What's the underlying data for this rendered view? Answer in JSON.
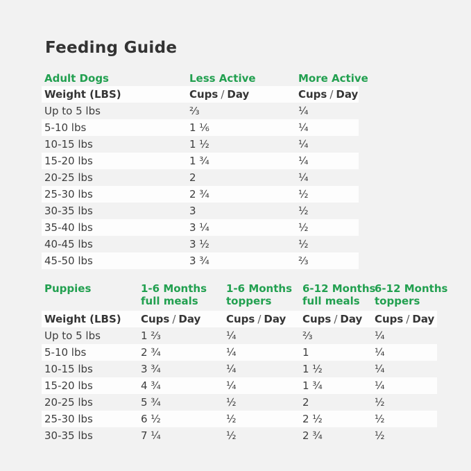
{
  "page": {
    "title": "Feeding Guide",
    "colors": {
      "accent_green": "#22A050",
      "background": "#F2F2F2",
      "stripe_white": "#FDFDFD",
      "text_dark": "#3A3A3A"
    }
  },
  "labels": {
    "cups_parts": [
      "Cups",
      "/",
      "Day"
    ]
  },
  "adult_table": {
    "section_label": "Adult Dogs",
    "col_headers": [
      "Less Active",
      "More Active"
    ],
    "weight_header": "Weight (LBS)",
    "rows": [
      {
        "weight": "Up to 5 lbs",
        "less": "⅔",
        "more": "¼"
      },
      {
        "weight": "5-10 lbs",
        "less": "1 ⅙",
        "more": "¼"
      },
      {
        "weight": "10-15 lbs",
        "less": "1 ½",
        "more": "¼"
      },
      {
        "weight": "15-20 lbs",
        "less": "1 ¾",
        "more": "¼"
      },
      {
        "weight": "20-25 lbs",
        "less": "2",
        "more": "¼"
      },
      {
        "weight": "25-30 lbs",
        "less": "2 ¾",
        "more": "½"
      },
      {
        "weight": "30-35 lbs",
        "less": "3",
        "more": "½"
      },
      {
        "weight": "35-40 lbs",
        "less": "3 ¼",
        "more": "½"
      },
      {
        "weight": "40-45 lbs",
        "less": "3 ½",
        "more": "½"
      },
      {
        "weight": "45-50 lbs",
        "less": "3 ¾",
        "more": "⅔"
      }
    ]
  },
  "puppy_table": {
    "section_label": "Puppies",
    "col_headers": [
      {
        "line1": "1-6 Months",
        "line2": "full meals"
      },
      {
        "line1": "1-6 Months",
        "line2": "toppers"
      },
      {
        "line1": "6-12 Months",
        "line2": "full meals"
      },
      {
        "line1": "6-12 Months",
        "line2": "toppers"
      }
    ],
    "weight_header": "Weight (LBS)",
    "rows": [
      {
        "weight": "Up to 5 lbs",
        "values": [
          "1 ⅔",
          "¼",
          "⅔",
          "¼"
        ]
      },
      {
        "weight": "5-10 lbs",
        "values": [
          "2 ¾",
          "¼",
          "1",
          "¼"
        ]
      },
      {
        "weight": "10-15 lbs",
        "values": [
          "3 ¾",
          "¼",
          "1 ½",
          "¼"
        ]
      },
      {
        "weight": "15-20 lbs",
        "values": [
          "4 ¾",
          "¼",
          "1 ¾",
          "¼"
        ]
      },
      {
        "weight": "20-25 lbs",
        "values": [
          "5 ¾",
          "½",
          "2",
          "½"
        ]
      },
      {
        "weight": "25-30 lbs",
        "values": [
          "6 ½",
          "½",
          "2 ½",
          "½"
        ]
      },
      {
        "weight": "30-35 lbs",
        "values": [
          "7 ¼",
          "½",
          "2 ¾",
          "½"
        ]
      }
    ]
  }
}
